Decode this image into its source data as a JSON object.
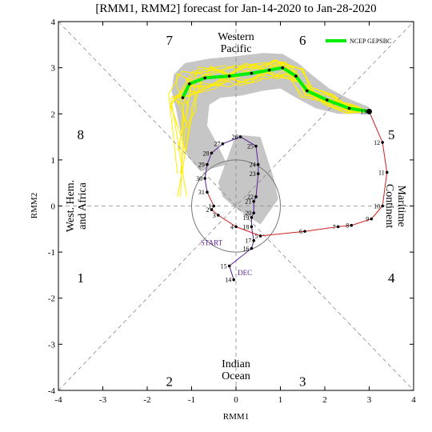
{
  "chart_data": {
    "type": "line",
    "title": "[RMM1, RMM2] forecast for Jan-14-2020 to Jan-28-2020",
    "xlabel": "RMM1",
    "ylabel": "RMM2",
    "xlim": [
      -4,
      4
    ],
    "ylim": [
      -4,
      4
    ],
    "x_ticks": [
      "-4",
      "-3",
      "-2",
      "-1",
      "0",
      "1",
      "2",
      "3",
      "4"
    ],
    "y_ticks": [
      "-4",
      "-3",
      "-2",
      "-1",
      "0",
      "1",
      "2",
      "3",
      "4"
    ],
    "grid": false,
    "colors": {
      "observed": "#cc2020",
      "december": "#5a1e96",
      "forecast_mean": "#00ee00",
      "members": "#ffee00",
      "spread": "#a0a0a0"
    },
    "phases": [
      {
        "label": "1",
        "x": -3.5,
        "y": -1.55
      },
      {
        "label": "2",
        "x": -1.5,
        "y": -3.8
      },
      {
        "label": "3",
        "x": 1.5,
        "y": -3.8
      },
      {
        "label": "4",
        "x": 3.5,
        "y": -1.55
      },
      {
        "label": "5",
        "x": 3.5,
        "y": 1.55
      },
      {
        "label": "6",
        "x": 1.5,
        "y": 3.6
      },
      {
        "label": "7",
        "x": -1.5,
        "y": 3.6
      },
      {
        "label": "8",
        "x": -3.5,
        "y": 1.55
      }
    ],
    "regions": [
      {
        "name": "western-pacific",
        "lines": [
          "Western",
          "Pacific"
        ],
        "x": 0,
        "y": 3.55,
        "rotate": 0
      },
      {
        "name": "indian-ocean",
        "lines": [
          "Indian",
          "Ocean"
        ],
        "x": 0,
        "y": -3.55,
        "rotate": 0
      },
      {
        "name": "west-hem-africa",
        "lines": [
          "West. Hem.",
          "and Africa"
        ],
        "x": -3.6,
        "y": 0,
        "rotate": -90
      },
      {
        "name": "maritime-continent",
        "lines": [
          "Maritime",
          "Continent"
        ],
        "x": 3.6,
        "y": 0,
        "rotate": 90
      }
    ],
    "legend": {
      "label": "NCEP GEPSBC",
      "position": "top-right"
    },
    "markers": [
      {
        "text": "START",
        "x": -0.55,
        "y": -0.85
      },
      {
        "text": "DEC",
        "x": 0.2,
        "y": -1.5
      }
    ],
    "series": [
      {
        "name": "observed",
        "points": [
          {
            "d": "1",
            "x": -0.5,
            "y": 0.0
          },
          {
            "d": "2",
            "x": -0.55,
            "y": -0.08
          },
          {
            "d": "3",
            "x": -0.4,
            "y": -0.2
          },
          {
            "d": "4",
            "x": 0.0,
            "y": -0.45
          },
          {
            "d": "5",
            "x": 0.55,
            "y": -0.65
          },
          {
            "d": "6",
            "x": 1.55,
            "y": -0.55
          },
          {
            "d": "7",
            "x": 2.3,
            "y": -0.45
          },
          {
            "d": "8",
            "x": 2.6,
            "y": -0.42
          },
          {
            "d": "9",
            "x": 3.05,
            "y": -0.28
          },
          {
            "d": "10",
            "x": 3.3,
            "y": 0.0
          },
          {
            "d": "11",
            "x": 3.4,
            "y": 0.73
          },
          {
            "d": "12",
            "x": 3.3,
            "y": 1.38
          },
          {
            "d": "13",
            "x": 3.0,
            "y": 2.05
          }
        ]
      },
      {
        "name": "december",
        "points": [
          {
            "d": "14",
            "x": -0.05,
            "y": -1.6
          },
          {
            "d": "15",
            "x": -0.15,
            "y": -1.3
          },
          {
            "d": "16",
            "x": 0.35,
            "y": -0.92
          },
          {
            "d": "17",
            "x": 0.4,
            "y": -0.75
          },
          {
            "d": "18",
            "x": 0.35,
            "y": -0.45
          },
          {
            "d": "19",
            "x": 0.35,
            "y": -0.25
          },
          {
            "d": "20",
            "x": 0.4,
            "y": -0.15
          },
          {
            "d": "21",
            "x": 0.4,
            "y": 0.1
          },
          {
            "d": "22",
            "x": 0.45,
            "y": 0.2
          },
          {
            "d": "23",
            "x": 0.5,
            "y": 0.7
          },
          {
            "d": "24",
            "x": 0.5,
            "y": 0.9
          },
          {
            "d": "25",
            "x": 0.45,
            "y": 1.3
          },
          {
            "d": "26",
            "x": 0.1,
            "y": 1.5
          },
          {
            "d": "27",
            "x": -0.3,
            "y": 1.35
          },
          {
            "d": "28",
            "x": -0.55,
            "y": 1.15
          },
          {
            "d": "29",
            "x": -0.65,
            "y": 0.9
          },
          {
            "d": "30",
            "x": -0.7,
            "y": 0.6
          },
          {
            "d": "31",
            "x": -0.65,
            "y": 0.3
          }
        ]
      },
      {
        "name": "NCEP GEPSBC",
        "points": [
          {
            "x": 3.0,
            "y": 2.05
          },
          {
            "x": 2.55,
            "y": 2.12
          },
          {
            "x": 2.05,
            "y": 2.3
          },
          {
            "x": 1.6,
            "y": 2.5
          },
          {
            "x": 1.35,
            "y": 2.82
          },
          {
            "x": 1.05,
            "y": 3.0
          },
          {
            "x": 0.75,
            "y": 2.95
          },
          {
            "x": 0.35,
            "y": 2.88
          },
          {
            "x": -0.15,
            "y": 2.82
          },
          {
            "x": -0.7,
            "y": 2.78
          },
          {
            "x": -1.05,
            "y": 2.65
          },
          {
            "x": -1.2,
            "y": 2.35
          }
        ]
      }
    ]
  }
}
